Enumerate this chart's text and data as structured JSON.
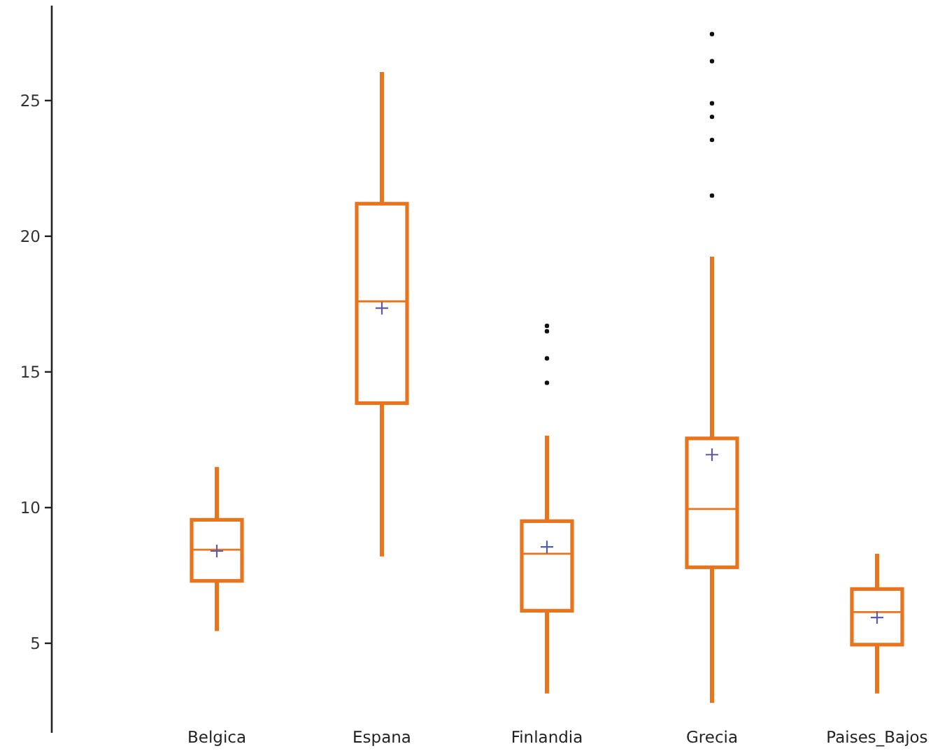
{
  "chart_data": {
    "type": "box",
    "categories": [
      "Belgica",
      "Espana",
      "Finlandia",
      "Grecia",
      "Paises_Bajos"
    ],
    "color": "#e8741e",
    "boxes": [
      {
        "low": 5.45,
        "q1": 7.3,
        "median": 8.45,
        "q3": 9.55,
        "high": 11.5,
        "mean": 8.4
      },
      {
        "low": 8.2,
        "q1": 13.85,
        "median": 17.6,
        "q3": 21.2,
        "high": 26.05,
        "mean": 17.35
      },
      {
        "low": 3.15,
        "q1": 6.2,
        "median": 8.3,
        "q3": 9.5,
        "high": 12.65,
        "mean": 8.55,
        "outliers": [
          14.6,
          15.5,
          16.5,
          16.7
        ]
      },
      {
        "low": 2.8,
        "q1": 7.8,
        "median": 9.95,
        "q3": 12.55,
        "high": 19.25,
        "mean": 11.95,
        "outliers": [
          21.5,
          23.55,
          24.4,
          24.9,
          26.45,
          27.45
        ]
      },
      {
        "low": 3.15,
        "q1": 4.95,
        "median": 6.15,
        "q3": 7.0,
        "high": 8.3,
        "mean": 5.95
      }
    ],
    "ylim": [
      1.7,
      28.5
    ],
    "yticks": [
      5,
      10,
      15,
      20,
      25
    ]
  }
}
